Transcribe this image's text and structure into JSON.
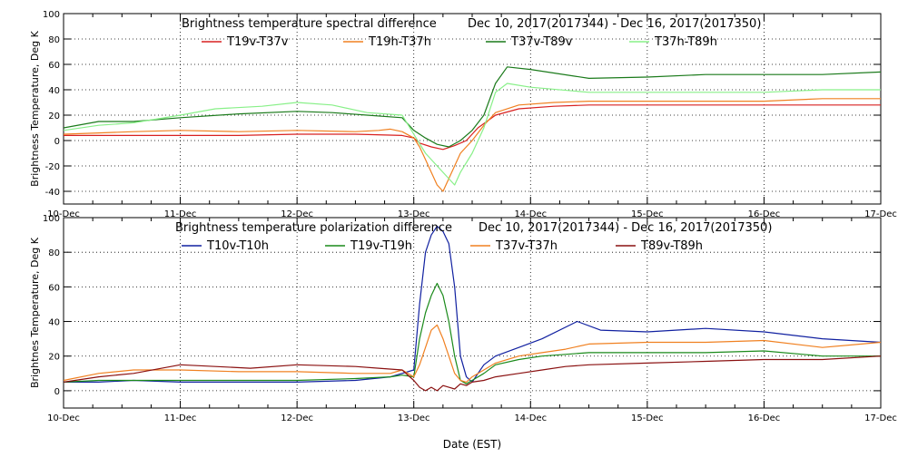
{
  "xlabel": "Date (EST)",
  "x_ticks": [
    "10-Dec",
    "11-Dec",
    "12-Dec",
    "13-Dec",
    "14-Dec",
    "15-Dec",
    "16-Dec",
    "17-Dec"
  ],
  "chart_data": [
    {
      "type": "line",
      "title_left": "Brightness temperature spectral difference",
      "title_right": "Dec 10, 2017(2017344) - Dec 16, 2017(2017350)",
      "ylabel": "Brightness Temperature, Deg K",
      "xlim": [
        0,
        7
      ],
      "ylim": [
        -50,
        100
      ],
      "y_ticks": [
        -40,
        -20,
        0,
        20,
        40,
        60,
        80,
        100
      ],
      "x_ticks": [
        "10-Dec",
        "11-Dec",
        "12-Dec",
        "13-Dec",
        "14-Dec",
        "15-Dec",
        "16-Dec",
        "17-Dec"
      ],
      "grid": true,
      "x_unit": "days since 10-Dec 00:00",
      "series": [
        {
          "name": "T19v-T37v",
          "color": "#d82020",
          "x": [
            0,
            0.5,
            1,
            1.5,
            2,
            2.5,
            2.9,
            3.0,
            3.05,
            3.15,
            3.25,
            3.35,
            3.45,
            3.55,
            3.7,
            3.9,
            4.2,
            4.5,
            5,
            5.5,
            6,
            6.5,
            7
          ],
          "y": [
            4,
            4,
            4,
            4,
            5,
            5,
            4,
            2,
            -2,
            -5,
            -7,
            -4,
            0,
            10,
            20,
            25,
            27,
            28,
            28,
            28,
            28,
            28,
            28
          ]
        },
        {
          "name": "T19h-T37h",
          "color": "#f08020",
          "x": [
            0,
            0.3,
            0.6,
            1,
            1.5,
            2,
            2.5,
            2.7,
            2.8,
            2.9,
            3.0,
            3.05,
            3.1,
            3.15,
            3.2,
            3.25,
            3.3,
            3.35,
            3.4,
            3.5,
            3.6,
            3.7,
            3.9,
            4.2,
            4.5,
            5,
            5.5,
            6,
            6.5,
            7
          ],
          "y": [
            5,
            6,
            7,
            8,
            7,
            8,
            7,
            8,
            9,
            7,
            2,
            -5,
            -15,
            -25,
            -35,
            -40,
            -30,
            -20,
            -10,
            0,
            12,
            22,
            28,
            30,
            31,
            31,
            31,
            31,
            33,
            33
          ]
        },
        {
          "name": "T37v-T89v",
          "color": "#1a7a1a",
          "x": [
            0,
            0.3,
            0.6,
            1,
            1.5,
            2,
            2.3,
            2.6,
            2.9,
            3.0,
            3.1,
            3.2,
            3.3,
            3.4,
            3.5,
            3.6,
            3.7,
            3.8,
            4.0,
            4.5,
            5,
            5.5,
            6,
            6.5,
            7
          ],
          "y": [
            10,
            15,
            15,
            18,
            21,
            23,
            22,
            20,
            18,
            8,
            2,
            -3,
            -5,
            0,
            8,
            20,
            45,
            58,
            56,
            49,
            50,
            52,
            52,
            52,
            54
          ]
        },
        {
          "name": "T37h-T89h",
          "color": "#88f088",
          "x": [
            0,
            0.3,
            0.6,
            1,
            1.3,
            1.7,
            2,
            2.3,
            2.6,
            2.9,
            3.0,
            3.1,
            3.2,
            3.3,
            3.35,
            3.4,
            3.5,
            3.6,
            3.7,
            3.8,
            4.0,
            4.5,
            5,
            5.5,
            6,
            6.5,
            7
          ],
          "y": [
            8,
            12,
            14,
            20,
            25,
            27,
            30,
            28,
            22,
            20,
            5,
            -10,
            -20,
            -30,
            -35,
            -25,
            -10,
            10,
            38,
            45,
            42,
            38,
            38,
            38,
            38,
            40,
            40
          ]
        }
      ]
    },
    {
      "type": "line",
      "title_left": "Brightness temperature polarization difference",
      "title_right": "Dec 10, 2017(2017344) - Dec 16, 2017(2017350)",
      "ylabel": "Brightnes Temperature, Deg K",
      "xlim": [
        0,
        7
      ],
      "ylim": [
        -10,
        100
      ],
      "y_ticks": [
        0,
        20,
        40,
        60,
        80,
        100
      ],
      "x_ticks": [
        "10-Dec",
        "11-Dec",
        "12-Dec",
        "13-Dec",
        "14-Dec",
        "15-Dec",
        "16-Dec",
        "17-Dec"
      ],
      "grid": true,
      "x_unit": "days since 10-Dec 00:00",
      "series": [
        {
          "name": "T10v-T10h",
          "color": "#1020a0",
          "x": [
            0,
            0.3,
            0.6,
            1,
            1.5,
            2,
            2.5,
            2.8,
            2.9,
            3.0,
            3.05,
            3.1,
            3.15,
            3.2,
            3.25,
            3.3,
            3.35,
            3.4,
            3.45,
            3.5,
            3.55,
            3.6,
            3.7,
            3.9,
            4.1,
            4.4,
            4.6,
            5,
            5.5,
            6,
            6.5,
            7
          ],
          "y": [
            5,
            5,
            6,
            5,
            5,
            5,
            6,
            8,
            10,
            12,
            50,
            80,
            90,
            95,
            92,
            85,
            60,
            20,
            8,
            5,
            10,
            15,
            20,
            25,
            30,
            40,
            35,
            34,
            36,
            34,
            30,
            28
          ]
        },
        {
          "name": "T19v-T19h",
          "color": "#1a8a1a",
          "x": [
            0,
            0.3,
            0.6,
            1,
            1.5,
            2,
            2.5,
            2.8,
            2.9,
            3.0,
            3.05,
            3.1,
            3.15,
            3.2,
            3.25,
            3.3,
            3.35,
            3.4,
            3.45,
            3.5,
            3.6,
            3.7,
            3.9,
            4.1,
            4.3,
            4.5,
            5,
            5.5,
            6,
            6.5,
            7
          ],
          "y": [
            5,
            6,
            6,
            6,
            6,
            6,
            7,
            8,
            9,
            8,
            30,
            45,
            55,
            62,
            55,
            40,
            20,
            6,
            4,
            6,
            10,
            15,
            18,
            20,
            21,
            22,
            22,
            22,
            23,
            20,
            20
          ]
        },
        {
          "name": "T37v-T37h",
          "color": "#f08020",
          "x": [
            0,
            0.3,
            0.6,
            1,
            1.5,
            2,
            2.5,
            2.8,
            2.9,
            3.0,
            3.05,
            3.1,
            3.15,
            3.2,
            3.25,
            3.3,
            3.35,
            3.4,
            3.45,
            3.5,
            3.6,
            3.7,
            3.9,
            4.1,
            4.3,
            4.5,
            5,
            5.5,
            6,
            6.5,
            7
          ],
          "y": [
            6,
            10,
            12,
            12,
            11,
            11,
            10,
            10,
            12,
            8,
            15,
            25,
            35,
            38,
            30,
            20,
            10,
            6,
            5,
            8,
            12,
            16,
            20,
            22,
            24,
            27,
            28,
            28,
            29,
            25,
            28
          ]
        },
        {
          "name": "T89v-T89h",
          "color": "#8a1010",
          "x": [
            0,
            0.3,
            0.6,
            1,
            1.3,
            1.6,
            2,
            2.5,
            2.7,
            2.9,
            3.0,
            3.05,
            3.1,
            3.15,
            3.2,
            3.25,
            3.3,
            3.35,
            3.4,
            3.45,
            3.5,
            3.6,
            3.7,
            3.9,
            4.1,
            4.3,
            4.5,
            5,
            5.5,
            6,
            6.5,
            7
          ],
          "y": [
            5,
            8,
            10,
            15,
            14,
            13,
            15,
            14,
            13,
            12,
            6,
            2,
            0,
            2,
            0,
            3,
            2,
            1,
            4,
            3,
            5,
            6,
            8,
            10,
            12,
            14,
            15,
            16,
            17,
            18,
            18,
            20
          ]
        }
      ]
    }
  ]
}
